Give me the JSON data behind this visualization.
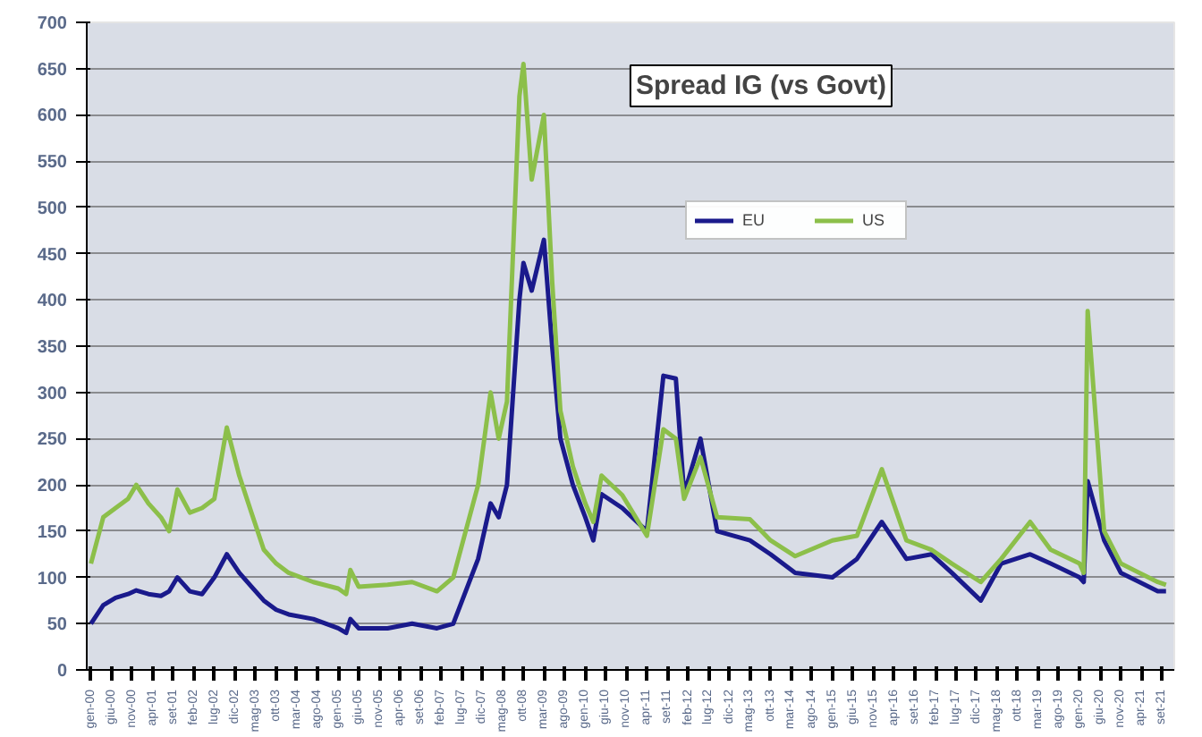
{
  "chart_data": {
    "type": "line",
    "title": "Spread IG (vs Govt)",
    "legend": "top",
    "grid": "y",
    "marker": "none",
    "line_style": "solid",
    "x": [
      "2000-01",
      "2000-04",
      "2000-07",
      "2000-10",
      "2000-12",
      "2001-03",
      "2001-06",
      "2001-08",
      "2001-10",
      "2002-01",
      "2002-04",
      "2002-07",
      "2002-10",
      "2003-01",
      "2003-04",
      "2003-07",
      "2003-10",
      "2004-01",
      "2004-07",
      "2005-01",
      "2005-03",
      "2005-04",
      "2005-06",
      "2006-01",
      "2006-07",
      "2007-01",
      "2007-05",
      "2007-08",
      "2007-11",
      "2008-02",
      "2008-04",
      "2008-06",
      "2008-09",
      "2008-10",
      "2008-12",
      "2009-03",
      "2009-05",
      "2009-07",
      "2009-10",
      "2010-01",
      "2010-03",
      "2010-05",
      "2010-10",
      "2011-04",
      "2011-08",
      "2011-11",
      "2012-01",
      "2012-05",
      "2012-09",
      "2013-05",
      "2013-10",
      "2014-04",
      "2015-01",
      "2015-07",
      "2016-01",
      "2016-07",
      "2017-01",
      "2017-06",
      "2018-01",
      "2018-06",
      "2019-01",
      "2019-06",
      "2020-01",
      "2020-02",
      "2020-03",
      "2020-07",
      "2020-11",
      "2021-08",
      "2021-10"
    ],
    "series": [
      {
        "name": "EU",
        "color": "#1a1a8c",
        "values": [
          50,
          70,
          78,
          82,
          86,
          82,
          80,
          85,
          100,
          85,
          82,
          100,
          125,
          105,
          90,
          75,
          65,
          60,
          55,
          45,
          40,
          55,
          45,
          45,
          50,
          45,
          50,
          85,
          120,
          180,
          165,
          200,
          400,
          440,
          410,
          465,
          350,
          250,
          200,
          165,
          140,
          190,
          175,
          150,
          318,
          315,
          190,
          250,
          150,
          140,
          125,
          105,
          100,
          120,
          160,
          120,
          125,
          105,
          75,
          115,
          125,
          115,
          100,
          95,
          204,
          140,
          105,
          85,
          85
        ]
      },
      {
        "name": "US",
        "color": "#8cbf4a",
        "values": [
          115,
          165,
          175,
          185,
          200,
          180,
          165,
          150,
          195,
          170,
          175,
          185,
          262,
          210,
          170,
          130,
          115,
          105,
          95,
          88,
          82,
          108,
          90,
          92,
          95,
          85,
          100,
          150,
          200,
          300,
          250,
          290,
          620,
          655,
          530,
          600,
          420,
          280,
          220,
          180,
          160,
          210,
          189,
          145,
          260,
          250,
          185,
          230,
          165,
          163,
          140,
          123,
          140,
          145,
          217,
          140,
          130,
          115,
          95,
          120,
          160,
          130,
          115,
          105,
          388,
          150,
          115,
          95,
          92
        ]
      }
    ],
    "xlim": [
      "1999-12",
      "2021-12"
    ],
    "xticks": [
      {
        "value": "2000-01",
        "label": "gen-00"
      },
      {
        "value": "2000-06",
        "label": "giu-00"
      },
      {
        "value": "2000-11",
        "label": "nov-00"
      },
      {
        "value": "2001-04",
        "label": "apr-01"
      },
      {
        "value": "2001-09",
        "label": "set-01"
      },
      {
        "value": "2002-02",
        "label": "feb-02"
      },
      {
        "value": "2002-07",
        "label": "lug-02"
      },
      {
        "value": "2002-12",
        "label": "dic-02"
      },
      {
        "value": "2003-05",
        "label": "mag-03"
      },
      {
        "value": "2003-10",
        "label": "ott-03"
      },
      {
        "value": "2004-03",
        "label": "mar-04"
      },
      {
        "value": "2004-08",
        "label": "ago-04"
      },
      {
        "value": "2005-01",
        "label": "gen-05"
      },
      {
        "value": "2005-06",
        "label": "giu-05"
      },
      {
        "value": "2005-11",
        "label": "nov-05"
      },
      {
        "value": "2006-04",
        "label": "apr-06"
      },
      {
        "value": "2006-09",
        "label": "set-06"
      },
      {
        "value": "2007-02",
        "label": "feb-07"
      },
      {
        "value": "2007-07",
        "label": "lug-07"
      },
      {
        "value": "2007-12",
        "label": "dic-07"
      },
      {
        "value": "2008-05",
        "label": "mag-08"
      },
      {
        "value": "2008-10",
        "label": "ott-08"
      },
      {
        "value": "2009-03",
        "label": "mar-09"
      },
      {
        "value": "2009-08",
        "label": "ago-09"
      },
      {
        "value": "2010-01",
        "label": "gen-10"
      },
      {
        "value": "2010-06",
        "label": "giu-10"
      },
      {
        "value": "2010-11",
        "label": "nov-10"
      },
      {
        "value": "2011-04",
        "label": "apr-11"
      },
      {
        "value": "2011-09",
        "label": "set-11"
      },
      {
        "value": "2012-02",
        "label": "feb-12"
      },
      {
        "value": "2012-07",
        "label": "lug-12"
      },
      {
        "value": "2012-12",
        "label": "dic-12"
      },
      {
        "value": "2013-05",
        "label": "mag-13"
      },
      {
        "value": "2013-10",
        "label": "ott-13"
      },
      {
        "value": "2014-03",
        "label": "mar-14"
      },
      {
        "value": "2014-08",
        "label": "ago-14"
      },
      {
        "value": "2015-01",
        "label": "gen-15"
      },
      {
        "value": "2015-06",
        "label": "giu-15"
      },
      {
        "value": "2015-11",
        "label": "nov-15"
      },
      {
        "value": "2016-04",
        "label": "apr-16"
      },
      {
        "value": "2016-09",
        "label": "set-16"
      },
      {
        "value": "2017-02",
        "label": "feb-17"
      },
      {
        "value": "2017-07",
        "label": "lug-17"
      },
      {
        "value": "2017-12",
        "label": "dic-17"
      },
      {
        "value": "2018-05",
        "label": "mag-18"
      },
      {
        "value": "2018-10",
        "label": "ott-18"
      },
      {
        "value": "2019-03",
        "label": "mar-19"
      },
      {
        "value": "2019-08",
        "label": "ago-19"
      },
      {
        "value": "2020-01",
        "label": "gen-20"
      },
      {
        "value": "2020-06",
        "label": "giu-20"
      },
      {
        "value": "2020-11",
        "label": "nov-20"
      },
      {
        "value": "2021-04",
        "label": "apr-21"
      },
      {
        "value": "2021-09",
        "label": "set-21"
      }
    ],
    "ylim": [
      0,
      700
    ],
    "yticks": [
      0,
      50,
      100,
      150,
      200,
      250,
      300,
      350,
      400,
      450,
      500,
      550,
      600,
      650,
      700
    ]
  }
}
